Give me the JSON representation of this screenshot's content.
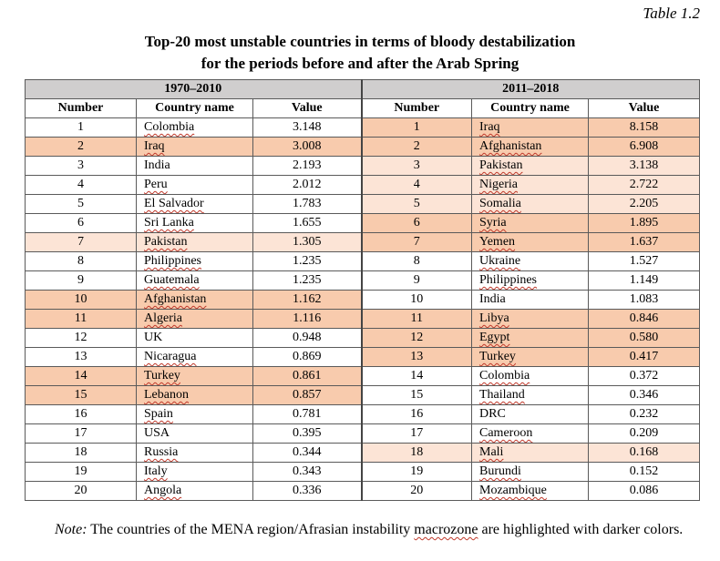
{
  "table_label": "Table 1.2",
  "title_line1": "Top-20 most unstable countries in terms of bloody destabilization",
  "title_line2": "for the periods before and after the Arab Spring",
  "periods": {
    "left": "1970–2010",
    "right": "2011–2018"
  },
  "columns": {
    "number": "Number",
    "country": "Country name",
    "value": "Value"
  },
  "colors": {
    "dark_highlight": "#f8cbad",
    "light_highlight": "#fce4d6",
    "group_header": "#d0cece"
  },
  "left_rows": [
    {
      "n": "1",
      "c": "Colombia",
      "v": "3.148",
      "h": "none",
      "u": true
    },
    {
      "n": "2",
      "c": "Iraq",
      "v": "3.008",
      "h": "dark",
      "u": true
    },
    {
      "n": "3",
      "c": "India",
      "v": "2.193",
      "h": "none",
      "u": false
    },
    {
      "n": "4",
      "c": "Peru",
      "v": "2.012",
      "h": "none",
      "u": true
    },
    {
      "n": "5",
      "c": "El Salvador",
      "v": "1.783",
      "h": "none",
      "u": true
    },
    {
      "n": "6",
      "c": "Sri Lanka",
      "v": "1.655",
      "h": "none",
      "u": true
    },
    {
      "n": "7",
      "c": "Pakistan",
      "v": "1.305",
      "h": "light",
      "u": true
    },
    {
      "n": "8",
      "c": "Philippines",
      "v": "1.235",
      "h": "none",
      "u": true
    },
    {
      "n": "9",
      "c": "Guatemala",
      "v": "1.235",
      "h": "none",
      "u": true
    },
    {
      "n": "10",
      "c": "Afghanistan",
      "v": "1.162",
      "h": "dark",
      "u": true
    },
    {
      "n": "11",
      "c": "Algeria",
      "v": "1.116",
      "h": "dark",
      "u": true
    },
    {
      "n": "12",
      "c": "UK",
      "v": "0.948",
      "h": "none",
      "u": false
    },
    {
      "n": "13",
      "c": "Nicaragua",
      "v": "0.869",
      "h": "none",
      "u": true
    },
    {
      "n": "14",
      "c": "Turkey",
      "v": "0.861",
      "h": "dark",
      "u": true
    },
    {
      "n": "15",
      "c": "Lebanon",
      "v": "0.857",
      "h": "dark",
      "u": true
    },
    {
      "n": "16",
      "c": "Spain",
      "v": "0.781",
      "h": "none",
      "u": true
    },
    {
      "n": "17",
      "c": "USA",
      "v": "0.395",
      "h": "none",
      "u": false
    },
    {
      "n": "18",
      "c": "Russia",
      "v": "0.344",
      "h": "none",
      "u": true
    },
    {
      "n": "19",
      "c": "Italy",
      "v": "0.343",
      "h": "none",
      "u": true
    },
    {
      "n": "20",
      "c": "Angola",
      "v": "0.336",
      "h": "none",
      "u": true
    }
  ],
  "right_rows": [
    {
      "n": "1",
      "c": "Iraq",
      "v": "8.158",
      "h": "dark",
      "u": true
    },
    {
      "n": "2",
      "c": "Afghanistan",
      "v": "6.908",
      "h": "dark",
      "u": true
    },
    {
      "n": "3",
      "c": "Pakistan",
      "v": "3.138",
      "h": "light",
      "u": true
    },
    {
      "n": "4",
      "c": "Nigeria",
      "v": "2.722",
      "h": "light",
      "u": true
    },
    {
      "n": "5",
      "c": "Somalia",
      "v": "2.205",
      "h": "light",
      "u": true
    },
    {
      "n": "6",
      "c": "Syria",
      "v": "1.895",
      "h": "dark",
      "u": true
    },
    {
      "n": "7",
      "c": "Yemen",
      "v": "1.637",
      "h": "dark",
      "u": true
    },
    {
      "n": "8",
      "c": "Ukraine",
      "v": "1.527",
      "h": "none",
      "u": true
    },
    {
      "n": "9",
      "c": "Philippines",
      "v": "1.149",
      "h": "none",
      "u": true
    },
    {
      "n": "10",
      "c": "India",
      "v": "1.083",
      "h": "none",
      "u": false
    },
    {
      "n": "11",
      "c": "Libya",
      "v": "0.846",
      "h": "dark",
      "u": true
    },
    {
      "n": "12",
      "c": "Egypt",
      "v": "0.580",
      "h": "dark",
      "u": true
    },
    {
      "n": "13",
      "c": "Turkey",
      "v": "0.417",
      "h": "dark",
      "u": true
    },
    {
      "n": "14",
      "c": "Colombia",
      "v": "0.372",
      "h": "none",
      "u": true
    },
    {
      "n": "15",
      "c": "Thailand",
      "v": "0.346",
      "h": "none",
      "u": true
    },
    {
      "n": "16",
      "c": "DRC",
      "v": "0.232",
      "h": "none",
      "u": false
    },
    {
      "n": "17",
      "c": "Cameroon",
      "v": "0.209",
      "h": "none",
      "u": true
    },
    {
      "n": "18",
      "c": "Mali",
      "v": "0.168",
      "h": "light",
      "u": true
    },
    {
      "n": "19",
      "c": "Burundi",
      "v": "0.152",
      "h": "none",
      "u": true
    },
    {
      "n": "20",
      "c": "Mozambique",
      "v": "0.086",
      "h": "none",
      "u": true
    }
  ],
  "note": {
    "label": "Note:",
    "text_before": " The countries of the MENA region/Afrasian instability ",
    "underlined_word": "macrozone",
    "text_after": " are highlighted with darker colors."
  }
}
